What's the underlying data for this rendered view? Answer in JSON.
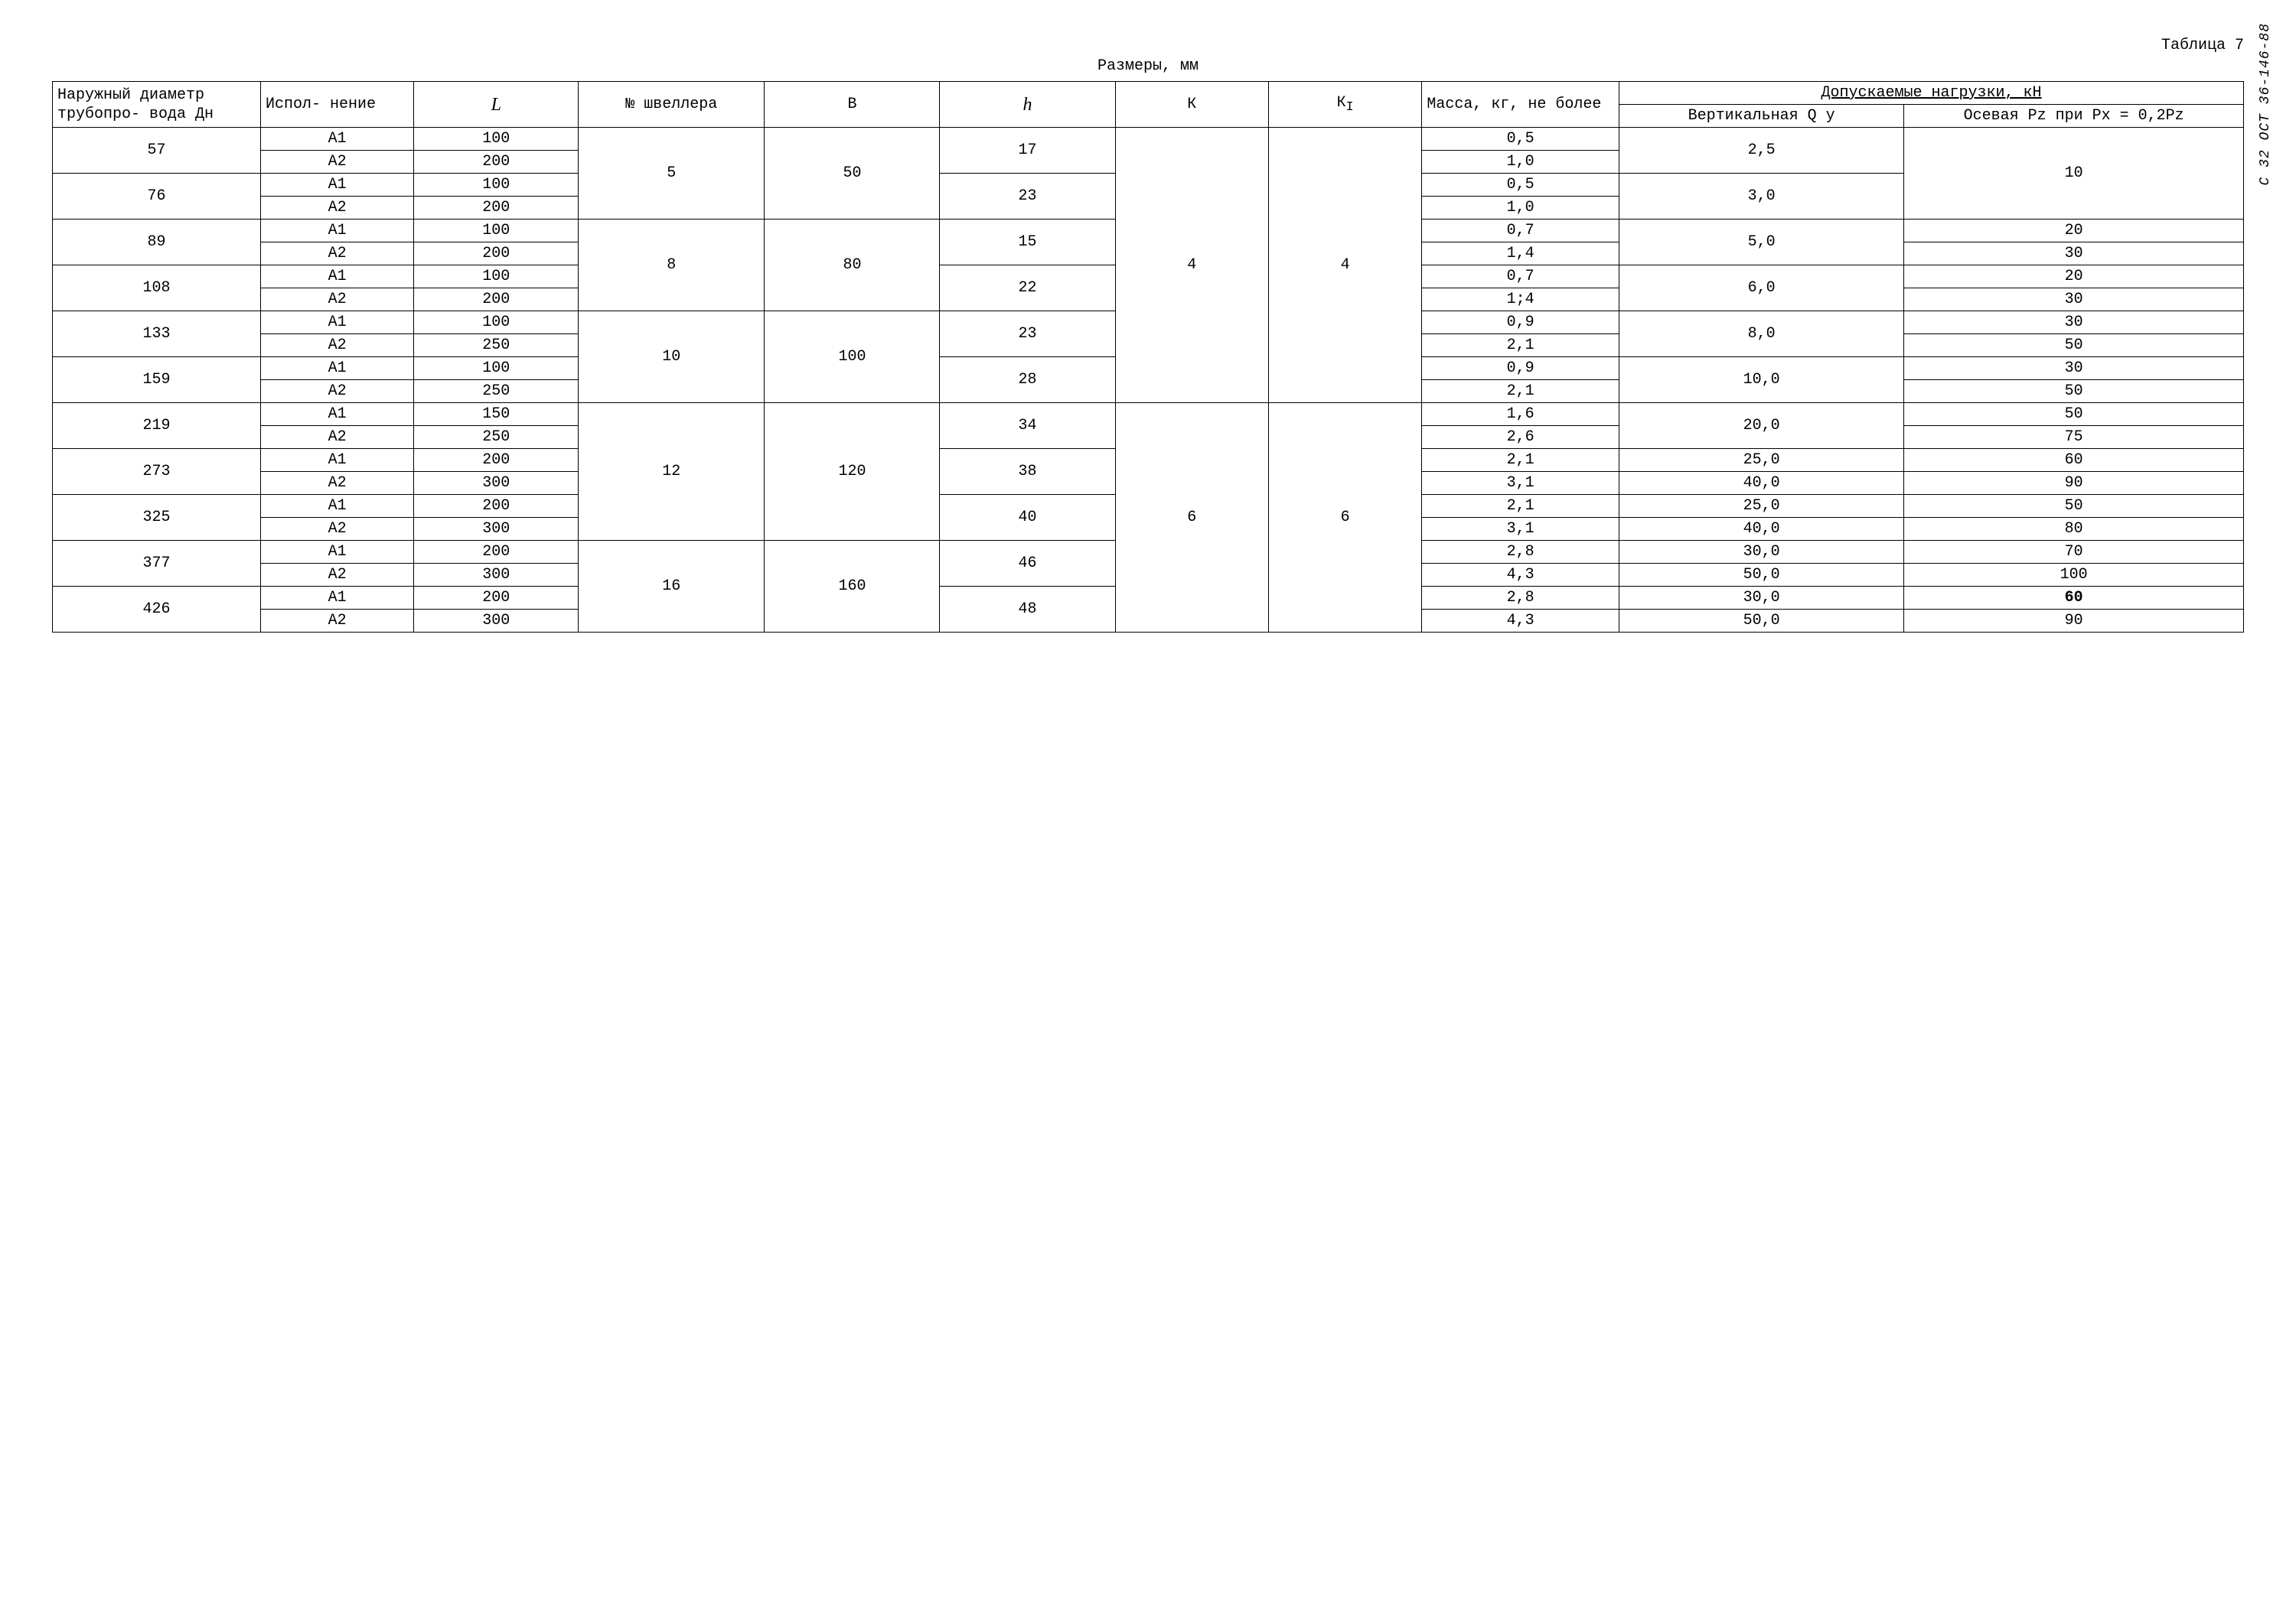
{
  "meta": {
    "table_label": "Таблица 7",
    "caption": "Размеры, мм",
    "side_code": "С 32 ОСТ 36-146-88"
  },
  "headers": {
    "dn": "Наружный диаметр трубопро- вода Дн",
    "isp": "Испол- нение",
    "L": "L",
    "chan": "№ швеллера",
    "B": "B",
    "h": "h",
    "K": "К",
    "KI": "К",
    "KI_sub": "I",
    "mass": "Масса, кг, не более",
    "loads": "Допускаемые нагрузки, кН",
    "Qy": "Вертикальная Q y",
    "Pz": "Осевая Pz при Px = 0,2Pz"
  },
  "groups": [
    {
      "chan": "5",
      "B": "50",
      "K": "4",
      "KI": "4",
      "dn_sections": [
        {
          "dn": "57",
          "h": "17",
          "Qy": "2,5",
          "Pz_rows": [
            "10"
          ],
          "rows": [
            {
              "isp": "А1",
              "L": "100",
              "mass": "0,5"
            },
            {
              "isp": "А2",
              "L": "200",
              "mass": "1,0"
            }
          ]
        },
        {
          "dn": "76",
          "h": "23",
          "Qy": "3,0",
          "Pz_rows": [
            "10"
          ],
          "rows": [
            {
              "isp": "А1",
              "L": "100",
              "mass": "0,5"
            },
            {
              "isp": "А2",
              "L": "200",
              "mass": "1,0"
            }
          ]
        }
      ],
      "Pz_span_first": true
    },
    {
      "chan": "8",
      "B": "80",
      "K": "4",
      "KI": "4",
      "dn_sections": [
        {
          "dn": "89",
          "h": "15",
          "Qy": "5,0",
          "Pz_rows": [
            "20",
            "30"
          ],
          "rows": [
            {
              "isp": "А1",
              "L": "100",
              "mass": "0,7"
            },
            {
              "isp": "А2",
              "L": "200",
              "mass": "1,4"
            }
          ]
        },
        {
          "dn": "108",
          "h": "22",
          "Qy": "6,0",
          "Pz_rows": [
            "20",
            "30"
          ],
          "rows": [
            {
              "isp": "А1",
              "L": "100",
              "mass": "0,7"
            },
            {
              "isp": "А2",
              "L": "200",
              "mass": "1;4"
            }
          ]
        }
      ]
    },
    {
      "chan": "10",
      "B": "100",
      "K": "4",
      "KI": "4",
      "dn_sections": [
        {
          "dn": "133",
          "h": "23",
          "Qy": "8,0",
          "Pz_rows": [
            "30",
            "50"
          ],
          "rows": [
            {
              "isp": "А1",
              "L": "100",
              "mass": "0,9"
            },
            {
              "isp": "А2",
              "L": "250",
              "mass": "2,1"
            }
          ]
        },
        {
          "dn": "159",
          "h": "28",
          "Qy": "10,0",
          "Pz_rows": [
            "30",
            "50"
          ],
          "rows": [
            {
              "isp": "А1",
              "L": "100",
              "mass": "0,9"
            },
            {
              "isp": "А2",
              "L": "250",
              "mass": "2,1"
            }
          ]
        }
      ]
    },
    {
      "chan": "12",
      "B": "120",
      "K": "6",
      "KI": "6",
      "dn_sections": [
        {
          "dn": "219",
          "h": "34",
          "Qy": "20,0",
          "Pz_rows": [
            "50",
            "75"
          ],
          "rows": [
            {
              "isp": "А1",
              "L": "150",
              "mass": "1,6"
            },
            {
              "isp": "А2",
              "L": "250",
              "mass": "2,6"
            }
          ]
        },
        {
          "dn": "273",
          "h": "38",
          "Qy_rows": [
            "25,0",
            "40,0"
          ],
          "Pz_rows": [
            "60",
            "90"
          ],
          "rows": [
            {
              "isp": "А1",
              "L": "200",
              "mass": "2,1"
            },
            {
              "isp": "А2",
              "L": "300",
              "mass": "3,1"
            }
          ]
        },
        {
          "dn": "325",
          "h": "40",
          "Qy_rows": [
            "25,0",
            "40,0"
          ],
          "Pz_rows": [
            "50",
            "80"
          ],
          "rows": [
            {
              "isp": "А1",
              "L": "200",
              "mass": "2,1"
            },
            {
              "isp": "А2",
              "L": "300",
              "mass": "3,1"
            }
          ]
        }
      ]
    },
    {
      "chan": "16",
      "B": "160",
      "K": "6",
      "KI": "6",
      "dn_sections": [
        {
          "dn": "377",
          "h": "46",
          "Qy_rows": [
            "30,0",
            "50,0"
          ],
          "Pz_rows": [
            "70",
            "100"
          ],
          "rows": [
            {
              "isp": "А1",
              "L": "200",
              "mass": "2,8"
            },
            {
              "isp": "А2",
              "L": "300",
              "mass": "4,3"
            }
          ]
        },
        {
          "dn": "426",
          "h": "48",
          "Qy_rows": [
            "30,0",
            "50,0"
          ],
          "Pz_rows": [
            "60",
            "90"
          ],
          "Pz_bold_first": true,
          "rows": [
            {
              "isp": "А1",
              "L": "200",
              "mass": "2,8"
            },
            {
              "isp": "А2",
              "L": "300",
              "mass": "4,3"
            }
          ]
        }
      ]
    }
  ]
}
